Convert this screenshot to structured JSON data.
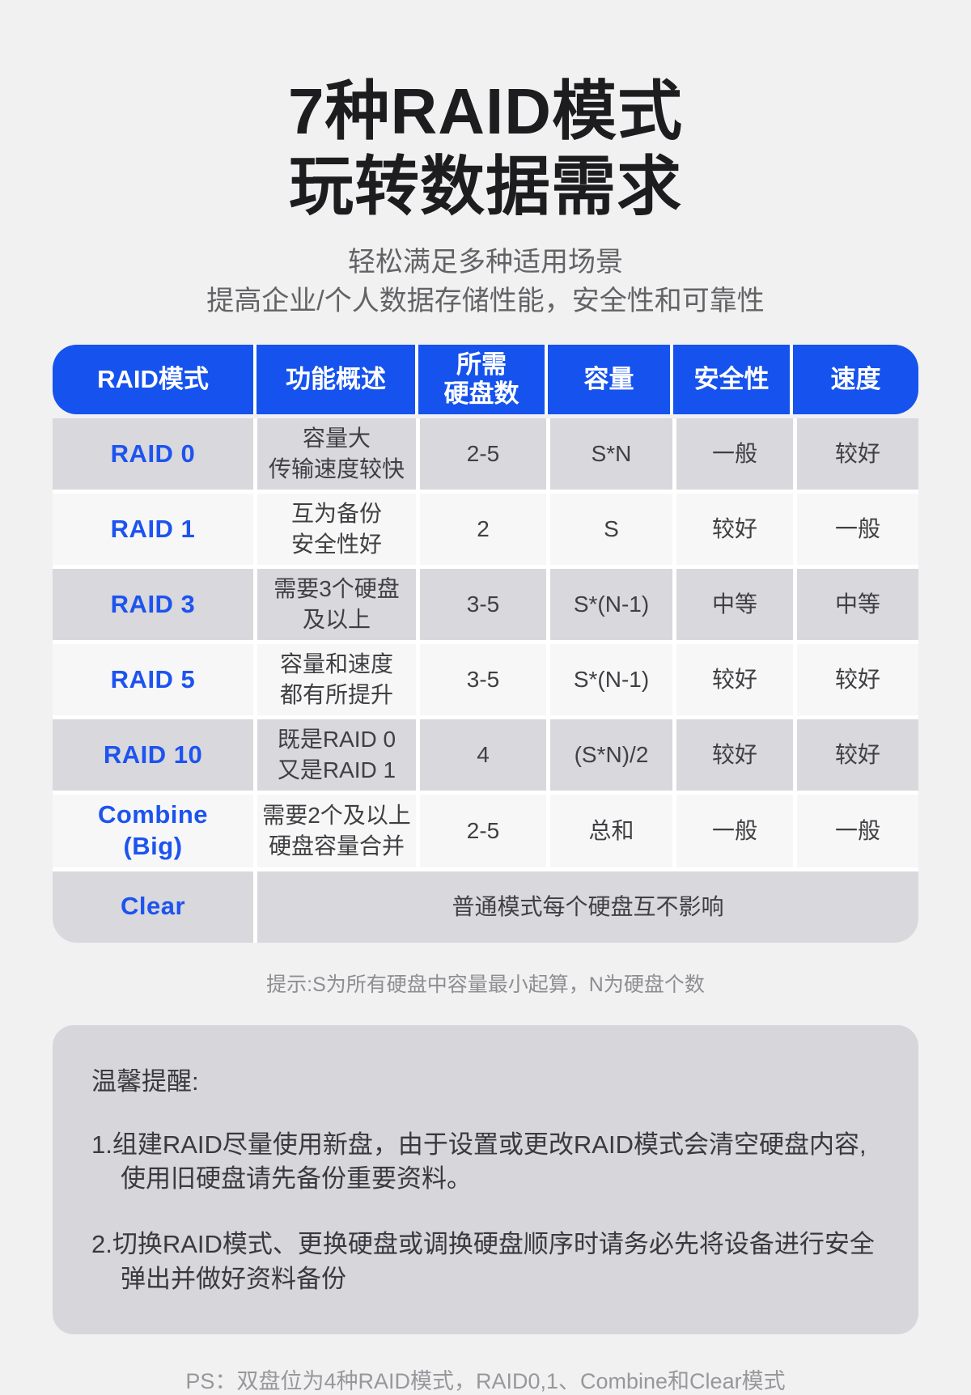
{
  "page": {
    "title_line1": "7种RAID模式",
    "title_line2": "玩转数据需求",
    "subtitle_line1": "轻松满足多种适用场景",
    "subtitle_line2": "提高企业/个人数据存储性能，安全性和可靠性",
    "tip": "提示:S为所有硬盘中容量最小起算，N为硬盘个数",
    "footer": "PS：双盘位为4种RAID模式，RAID0,1、Combine和Clear模式"
  },
  "colors": {
    "accent_blue": "#1652ee",
    "mode_label_blue": "#1d53ef",
    "row_gray": "#d8d8dd",
    "row_light": "#f7f7f8",
    "page_bg": "#f1f1f2",
    "reminder_bg": "#d6d6db"
  },
  "table": {
    "headers": [
      "RAID模式",
      "功能概述",
      "所需\n硬盘数",
      "容量",
      "安全性",
      "速度"
    ],
    "rows": [
      {
        "mode": "RAID 0",
        "desc": "容量大\n传输速度较快",
        "disks": "2-5",
        "capacity": "S*N",
        "safety": "一般",
        "speed": "较好"
      },
      {
        "mode": "RAID 1",
        "desc": "互为备份\n安全性好",
        "disks": "2",
        "capacity": "S",
        "safety": "较好",
        "speed": "一般"
      },
      {
        "mode": "RAID 3",
        "desc": "需要3个硬盘\n及以上",
        "disks": "3-5",
        "capacity": "S*(N-1)",
        "safety": "中等",
        "speed": "中等"
      },
      {
        "mode": "RAID 5",
        "desc": "容量和速度\n都有所提升",
        "disks": "3-5",
        "capacity": "S*(N-1)",
        "safety": "较好",
        "speed": "较好"
      },
      {
        "mode": "RAID 10",
        "desc": "既是RAID 0\n又是RAID 1",
        "disks": "4",
        "capacity": "(S*N)/2",
        "safety": "较好",
        "speed": "较好"
      },
      {
        "mode": "Combine\n(Big)",
        "desc": "需要2个及以上\n硬盘容量合并",
        "disks": "2-5",
        "capacity": "总和",
        "safety": "一般",
        "speed": "一般"
      }
    ],
    "clear_row": {
      "mode": "Clear",
      "desc": "普通模式每个硬盘互不影响"
    }
  },
  "reminder": {
    "title": "温馨提醒:",
    "items": [
      "1.组建RAID尽量使用新盘，由于设置或更改RAID模式会清空硬盘内容,使用旧硬盘请先备份重要资料。",
      "2.切换RAID模式、更换硬盘或调换硬盘顺序时请务必先将设备进行安全弹出并做好资料备份"
    ]
  }
}
